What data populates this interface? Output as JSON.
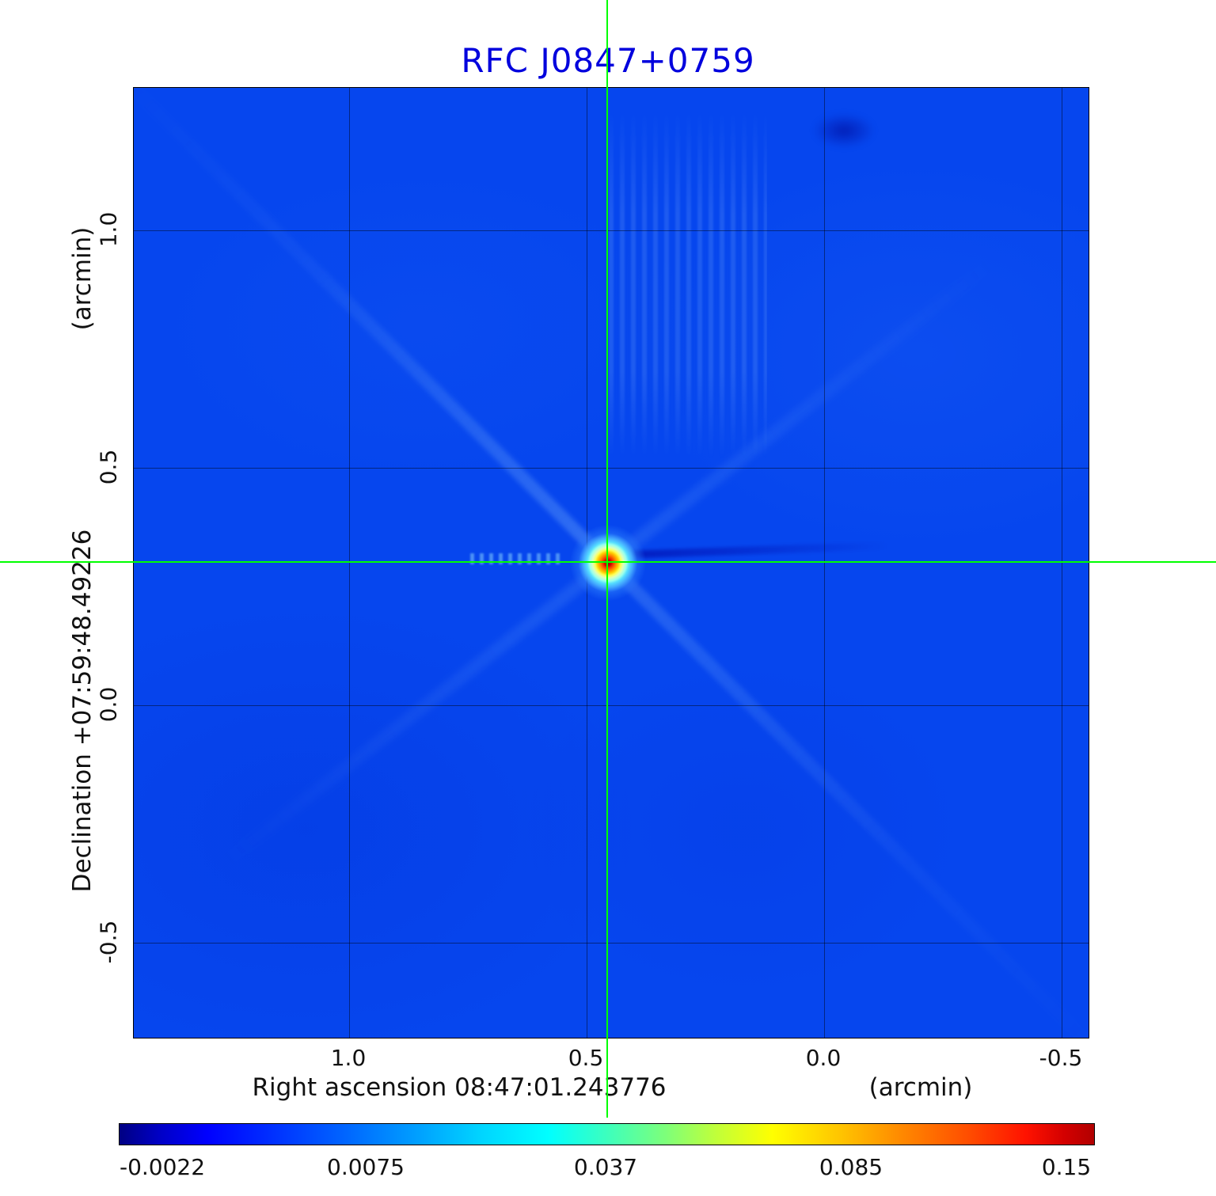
{
  "title": "RFC J0847+0759",
  "title_color": "#0000dd",
  "axes": {
    "y_unit": "(arcmin)",
    "y_label": "Declination  +07:59:48.49226",
    "x_label": "Right ascension  08:47:01.243776",
    "x_unit": "(arcmin)",
    "x_ticks": [
      "1.0",
      "0.5",
      "0.0",
      "-0.5"
    ],
    "y_ticks": [
      "1.0",
      "0.5",
      "0.0",
      "-0.5"
    ]
  },
  "colorbar": {
    "colormap": "jet",
    "ticks": [
      "-0.0022",
      "0.0075",
      "0.037",
      "0.085",
      "0.15"
    ]
  },
  "chart_data": {
    "type": "heatmap",
    "title": "RFC J0847+0759",
    "xlabel": "Right ascension 08:47:01.243776 (arcmin)",
    "ylabel": "Declination +07:59:48.49226 (arcmin)",
    "x_tick_values": [
      1.0,
      0.5,
      0.0,
      -0.5
    ],
    "y_tick_values": [
      1.0,
      0.5,
      0.0,
      -0.5
    ],
    "x_range_arcmin": [
      1.45,
      -0.56
    ],
    "y_range_arcmin": [
      -0.7,
      1.3
    ],
    "grid": true,
    "colormap": "jet",
    "value_min": -0.0022,
    "value_max": 0.15,
    "colorbar_tick_values": [
      -0.0022,
      0.0075,
      0.037,
      0.085,
      0.15
    ],
    "background_value_color": "#0646ee",
    "source_peak": {
      "x_arcmin": 0.455,
      "y_arcmin": 0.3,
      "peak_value": 0.15
    },
    "crosshair": {
      "x_arcmin": 0.455,
      "y_arcmin": 0.3,
      "color": "#00ff00"
    }
  }
}
